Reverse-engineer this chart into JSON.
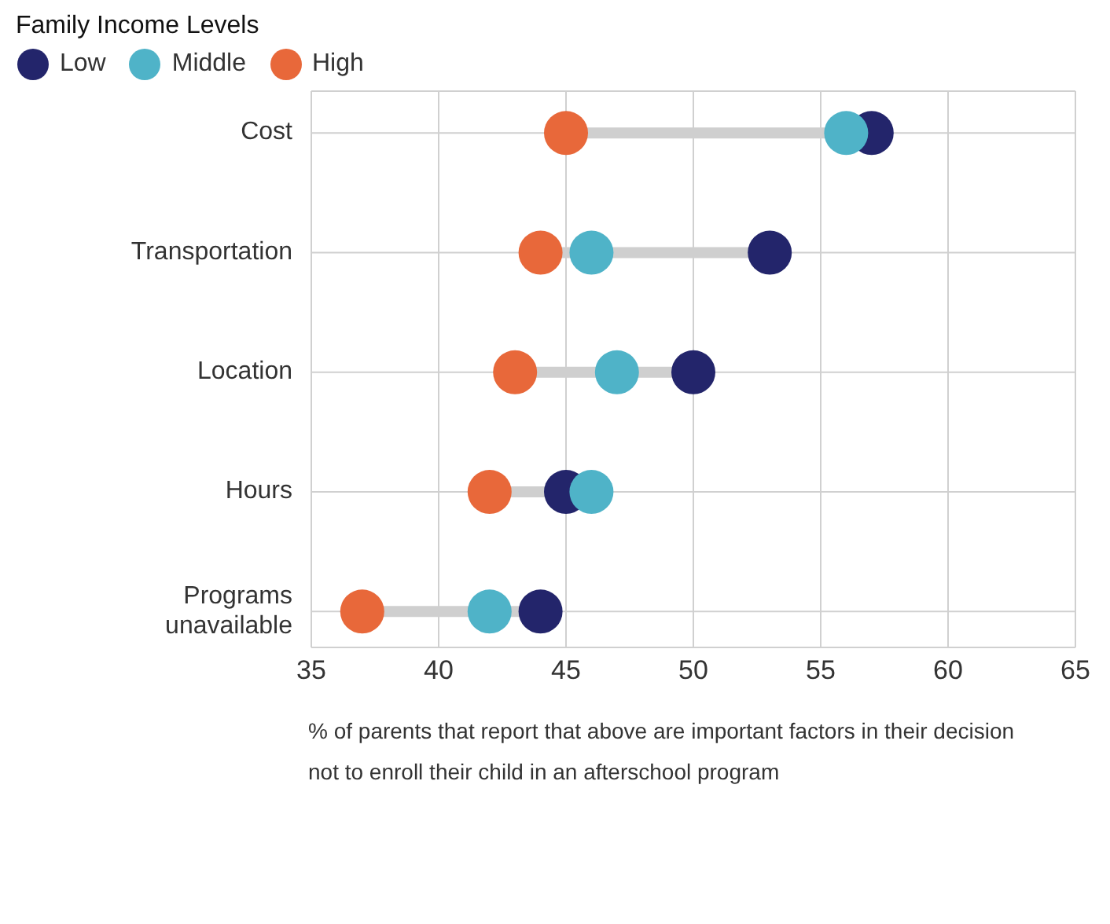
{
  "chart_data": {
    "type": "scatter",
    "orientation": "horizontal",
    "legend_title": "Family Income Levels",
    "legend": "top left",
    "xlabel": "% of parents that report that above are important factors in their decision not to enroll their child in an afterschool program",
    "categories": [
      "Cost",
      "Transportation",
      "Location",
      "Hours",
      "Programs unavailable"
    ],
    "series": [
      {
        "name": "Low",
        "color": "#23256b",
        "values": [
          57,
          53,
          50,
          45,
          44
        ]
      },
      {
        "name": "Middle",
        "color": "#4fb3c8",
        "values": [
          56,
          46,
          47,
          46,
          42
        ]
      },
      {
        "name": "High",
        "color": "#e8683a",
        "values": [
          45,
          44,
          43,
          42,
          37
        ]
      }
    ],
    "xlim": [
      35,
      65
    ],
    "xticks": [
      35,
      40,
      45,
      50,
      55,
      60,
      65
    ],
    "grid": true,
    "marker": "circle"
  }
}
